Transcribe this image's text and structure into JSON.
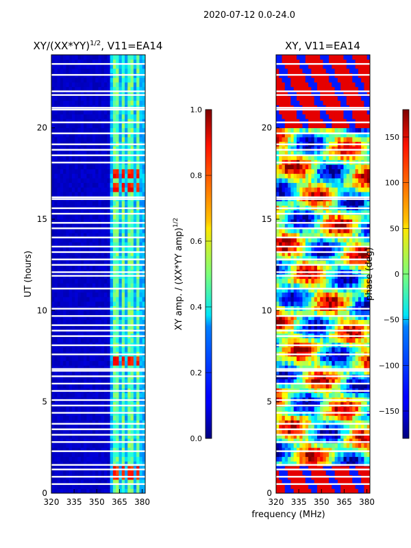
{
  "figure": {
    "suptitle": "2020-07-12 0.0-24.0",
    "shared_xlabel": "frequency (MHz)"
  },
  "chart_data": [
    {
      "type": "heatmap",
      "title": "XY/(XX*YY)",
      "title_power": "1/2",
      "title_suffix": ", V11=EA14",
      "xlabel": "",
      "ylabel": "UT (hours)",
      "xlim": [
        320,
        382
      ],
      "ylim": [
        0,
        24
      ],
      "xticks": [
        320,
        335,
        350,
        365,
        380
      ],
      "yticks": [
        0,
        5,
        10,
        15,
        20
      ],
      "colormap": "jet",
      "colorbar": {
        "label": "XY amp. / (XX*YY amp)",
        "label_power": "1/2",
        "range": [
          0.0,
          1.0
        ],
        "ticks": [
          "0.0",
          "0.2",
          "0.4",
          "0.6",
          "0.8",
          "1.0"
        ],
        "tick_values": [
          0.0,
          0.2,
          0.4,
          0.6,
          0.8,
          1.0
        ]
      },
      "description_values": {
        "background_level": 0.05,
        "channel_bands_MHz": [
          [
            360,
            364
          ],
          [
            366,
            369
          ],
          [
            371,
            374
          ],
          [
            376,
            379
          ]
        ],
        "band_level": 0.4,
        "high_spots_hours": [
          1.1,
          7.3,
          16.8,
          17.5
        ]
      }
    },
    {
      "type": "heatmap",
      "title": "XY, V11=EA14",
      "xlabel": "",
      "ylabel": "",
      "xlim": [
        320,
        382
      ],
      "ylim": [
        0,
        24
      ],
      "xticks": [
        320,
        335,
        350,
        365,
        380
      ],
      "yticks": [
        0,
        5,
        10,
        15,
        20
      ],
      "colormap": "jet",
      "colorbar": {
        "label": "phase (deg)",
        "range": [
          -180,
          180
        ],
        "ticks": [
          "150",
          "100",
          "50",
          "0",
          "−50",
          "−100",
          "−150"
        ],
        "tick_values": [
          150,
          100,
          50,
          0,
          -50,
          -100,
          -150
        ]
      }
    }
  ],
  "flag_gaps_hours": [
    0.5,
    0.9,
    1.3,
    1.55,
    2.3,
    2.8,
    3.2,
    3.5,
    3.8,
    4.4,
    4.8,
    5.1,
    5.6,
    6.0,
    6.4,
    6.7,
    6.8,
    7.6,
    8.1,
    8.6,
    8.9,
    9.2,
    9.7,
    10.1,
    11.2,
    11.9,
    12.1,
    12.5,
    12.8,
    13.2,
    13.5,
    14.0,
    14.5,
    14.8,
    15.3,
    15.6,
    16.1,
    16.2,
    18.1,
    18.5,
    18.8,
    19.1,
    19.7,
    20.3,
    21.0,
    21.1,
    21.8,
    22.0,
    22.9,
    23.5
  ]
}
